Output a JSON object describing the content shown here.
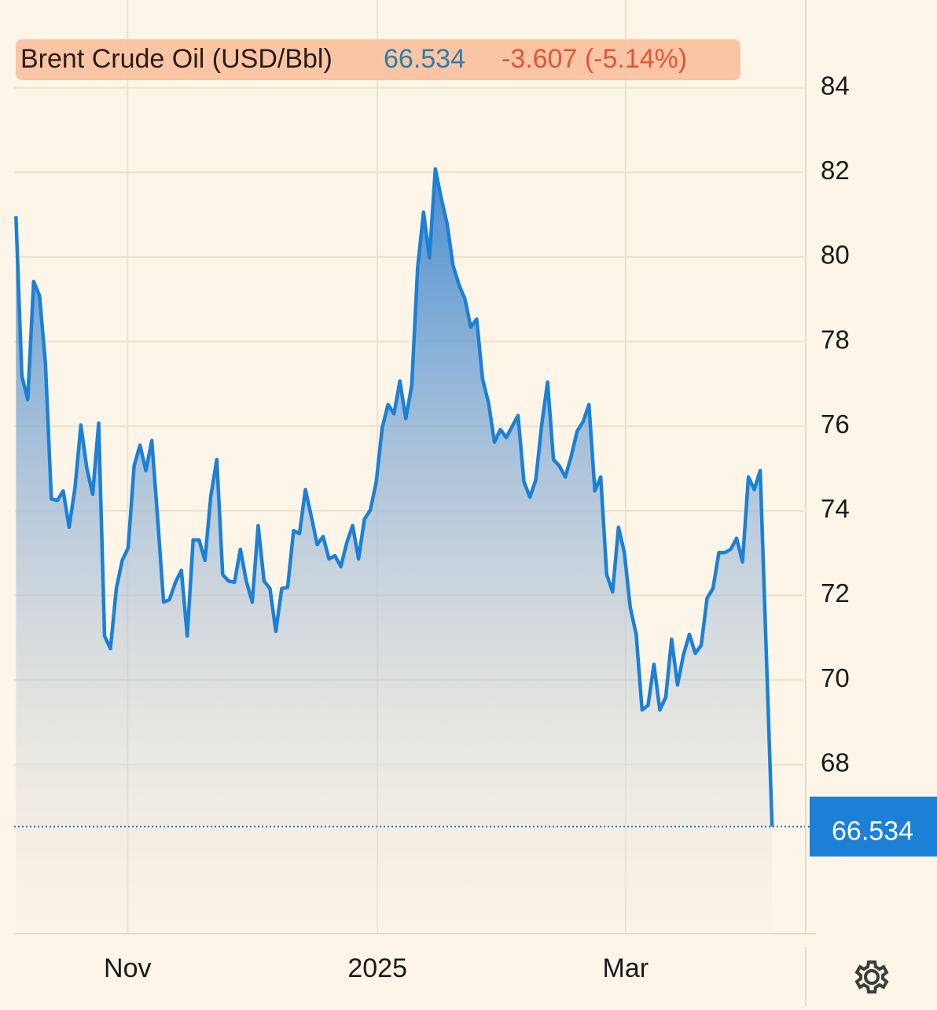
{
  "chart_data": {
    "type": "area",
    "title": "Brent Crude Oil (USD/Bbl)",
    "last_value": 66.534,
    "change": "-3.607 (-5.14%)",
    "series": [
      {
        "name": "Brent Crude Oil (USD/Bbl)",
        "color": "#1b80d6",
        "x": [
          0,
          1,
          2,
          3,
          4,
          5,
          6,
          7,
          8,
          9,
          10,
          11,
          12,
          13,
          14,
          15,
          16,
          17,
          18,
          19,
          20,
          21,
          22,
          23,
          24,
          25,
          26,
          27,
          28,
          29,
          30,
          31,
          32,
          33,
          34,
          35,
          36,
          37,
          38,
          39,
          40,
          41,
          42,
          43,
          44,
          45,
          46,
          47,
          48,
          49,
          50,
          51,
          52,
          53,
          54,
          55,
          56,
          57,
          58,
          59,
          60,
          61,
          62,
          63,
          64,
          65,
          66,
          67,
          68,
          69,
          70,
          71,
          72,
          73,
          74,
          75,
          76,
          77,
          78,
          79,
          80,
          81,
          82,
          83,
          84,
          85,
          86,
          87,
          88,
          89,
          90,
          91,
          92,
          93,
          94,
          95,
          96,
          97,
          98,
          99,
          100,
          101,
          102,
          103,
          104,
          105,
          106,
          107,
          108,
          109,
          110,
          111,
          112,
          113,
          114,
          115,
          116,
          117,
          118,
          119,
          120,
          121,
          122,
          123,
          124,
          125,
          126,
          128
        ],
        "values": [
          80.96,
          77.18,
          76.63,
          79.42,
          79.08,
          77.48,
          74.28,
          74.24,
          74.47,
          73.61,
          74.54,
          76.03,
          75.01,
          74.39,
          76.07,
          71.04,
          70.74,
          72.16,
          72.83,
          73.12,
          75.06,
          75.55,
          74.95,
          75.66,
          73.8,
          71.84,
          71.9,
          72.31,
          72.59,
          71.04,
          73.31,
          73.31,
          72.83,
          74.35,
          75.21,
          72.49,
          72.34,
          72.31,
          73.09,
          72.34,
          71.84,
          73.65,
          72.34,
          72.16,
          71.15,
          72.16,
          72.19,
          73.53,
          73.46,
          74.5,
          73.87,
          73.2,
          73.39,
          72.86,
          72.94,
          72.68,
          73.24,
          73.65,
          72.86,
          73.8,
          74.02,
          74.69,
          75.96,
          76.51,
          76.29,
          77.07,
          76.18,
          76.96,
          79.75,
          81.06,
          79.98,
          82.08,
          81.39,
          80.78,
          79.79,
          79.34,
          79.01,
          78.34,
          78.53,
          77.11,
          76.55,
          75.62,
          75.92,
          75.73,
          75.99,
          76.25,
          74.69,
          74.32,
          74.73,
          76.03,
          77.04,
          75.21,
          75.06,
          74.8,
          75.29,
          75.88,
          76.1,
          76.51,
          74.47,
          74.8,
          72.49,
          72.08,
          73.61,
          73.01,
          71.71,
          71.08,
          69.29,
          69.4,
          70.37,
          69.29,
          69.59,
          70.96,
          69.88,
          70.59,
          71.08,
          70.63,
          70.82,
          71.93,
          72.16,
          73.01,
          73.01,
          73.09,
          73.35,
          72.79,
          74.8,
          74.5,
          74.95,
          66.534
        ]
      }
    ],
    "xlim": [
      -0.3,
      133.3
    ],
    "xticks": [
      {
        "value": 18.9,
        "label": "Nov"
      },
      {
        "value": 61.2,
        "label": "2025"
      },
      {
        "value": 103.2,
        "label": "Mar"
      }
    ],
    "ylim": [
      64,
      86
    ],
    "yticks": [
      68,
      70,
      72,
      74,
      76,
      78,
      80,
      82,
      84
    ],
    "grid": true
  }
}
